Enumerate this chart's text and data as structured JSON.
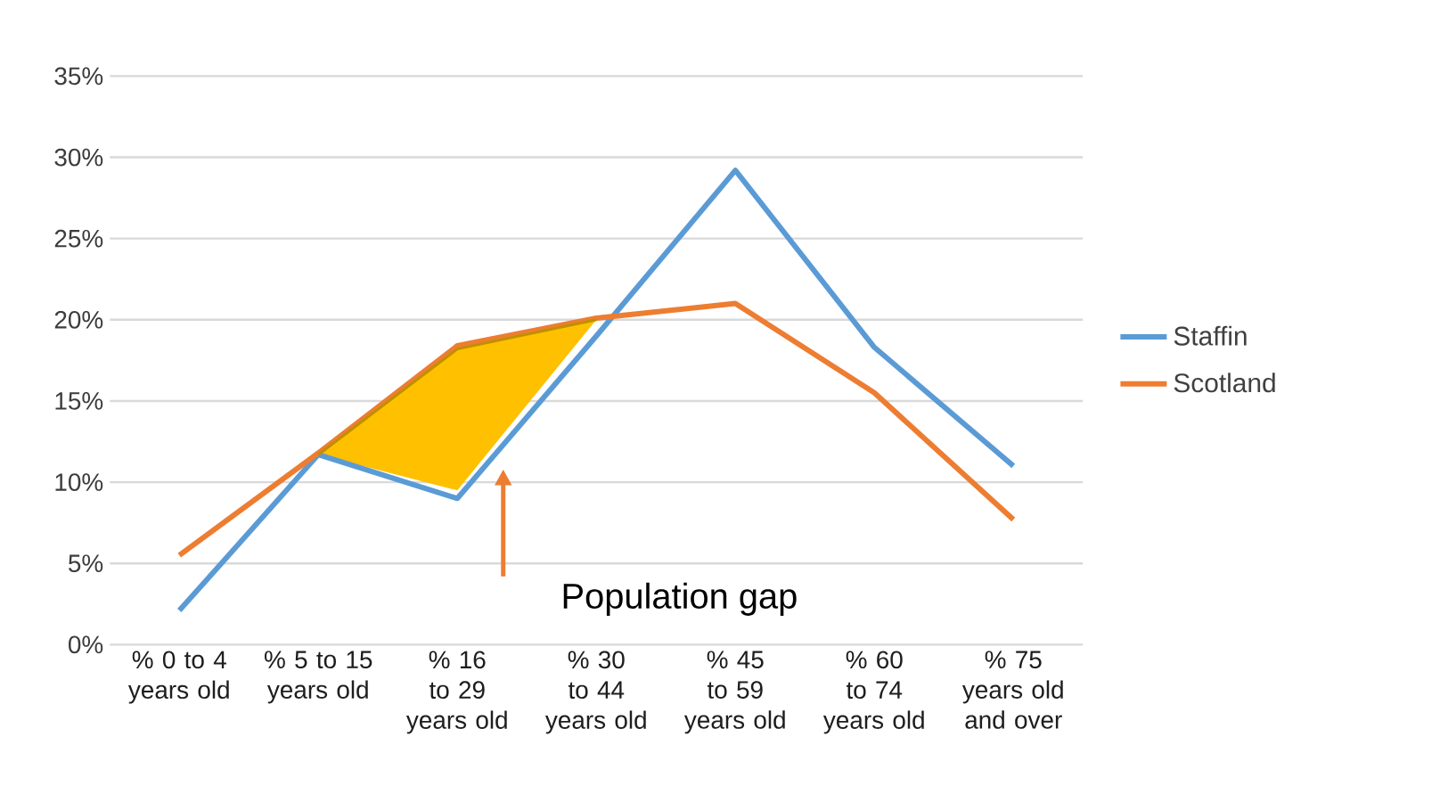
{
  "chart_data": {
    "type": "line",
    "categories": [
      "% 0 to 4 years old",
      "% 5 to 15 years old",
      "% 16 to 29 years old",
      "% 30 to 44 years old",
      "% 45 to 59 years old",
      "% 60 to 74 years old",
      "% 75 years old and over"
    ],
    "series": [
      {
        "name": "Staffin",
        "color": "#5b9bd5",
        "values": [
          2.1,
          11.7,
          9.0,
          19.0,
          29.2,
          18.3,
          11.0
        ]
      },
      {
        "name": "Scotland",
        "color": "#ed7d31",
        "values": [
          5.5,
          11.8,
          18.4,
          20.1,
          21.0,
          15.5,
          7.7
        ]
      },
      {
        "type": "line",
        "color": "#bf9000",
        "values": [
          null,
          11.7,
          18.2,
          20.0,
          null,
          null,
          null
        ],
        "lower": [
          null,
          11.7,
          9.5,
          20.0,
          null,
          null,
          null
        ],
        "upper": [
          null,
          11.7,
          18.2,
          20.0,
          null,
          null,
          null
        ]
      }
    ],
    "ylim": [
      0,
      35
    ],
    "yticks": [
      {
        "value": 0,
        "label": "0%"
      },
      {
        "value": 5,
        "label": "5%"
      },
      {
        "value": 10,
        "label": "10%"
      },
      {
        "value": 15,
        "label": "15%"
      },
      {
        "value": 20,
        "label": "20%"
      },
      {
        "value": 25,
        "label": "25%"
      },
      {
        "value": 30,
        "label": "30%"
      },
      {
        "value": 35,
        "label": "35%"
      }
    ],
    "grid": "y",
    "legend": "right",
    "marker": "none",
    "line_style": "solid",
    "annotations": [
      "Population gap"
    ]
  }
}
